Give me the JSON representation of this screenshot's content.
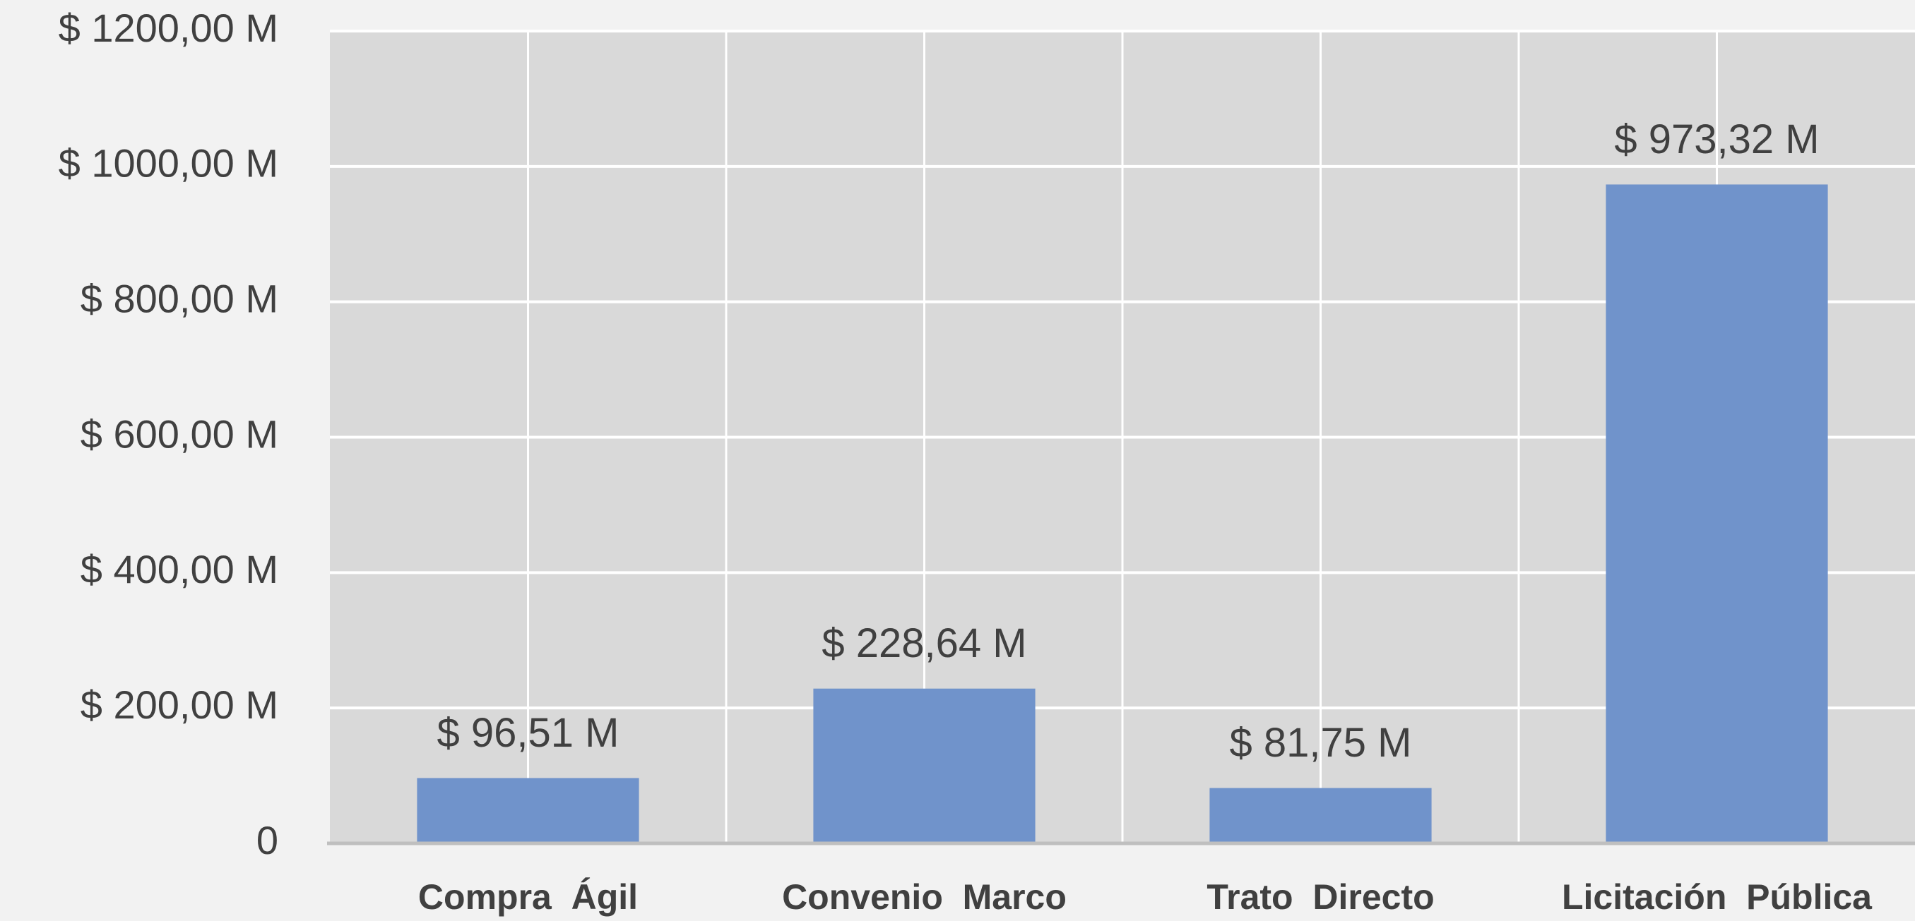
{
  "chart_data": {
    "type": "bar",
    "categories": [
      "Compra  Ágil",
      "Convenio  Marco",
      "Trato  Directo",
      "Licitación  Pública"
    ],
    "values": [
      96.51,
      228.64,
      81.75,
      973.32
    ],
    "value_labels": [
      "$ 96,51 M",
      "$ 228,64 M",
      "$ 81,75 M",
      "$ 973,32 M"
    ],
    "color": "#7093cb",
    "ylim": [
      0,
      1200
    ],
    "yticks": [
      0,
      {
        "value": 200,
        "label": "$ 200,00 M"
      },
      {
        "value": 400,
        "label": "$ 400,00 M"
      },
      {
        "value": 600,
        "label": "$ 600,00 M"
      },
      {
        "value": 800,
        "label": "$ 800,00 M"
      },
      {
        "value": 1000,
        "label": "$ 1000,00 M"
      },
      {
        "value": 1200,
        "label": "$ 1200,00 M"
      }
    ],
    "grid": true
  }
}
